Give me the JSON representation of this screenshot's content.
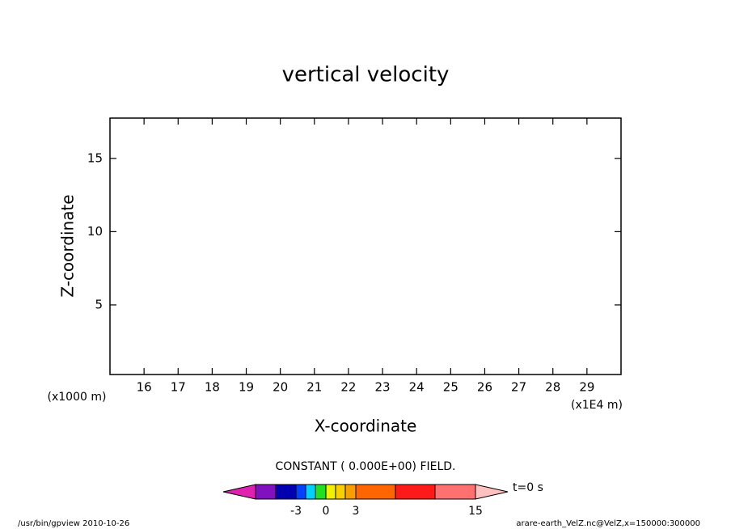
{
  "chart_data": {
    "type": "contour",
    "title": "vertical velocity",
    "xlabel": "X-coordinate",
    "ylabel": "Z-coordinate",
    "xunit": "(x1E4 m)",
    "yunit": "(x1000 m)",
    "xlim": [
      15,
      30
    ],
    "xticks": [
      16,
      17,
      18,
      19,
      20,
      21,
      22,
      23,
      24,
      25,
      26,
      27,
      28,
      29
    ],
    "ylim": [
      0.25,
      17.75
    ],
    "yticks": [
      5,
      10,
      15
    ],
    "message": "CONSTANT ( 0.000E+00) FIELD.",
    "time": "t=0 s",
    "colorbar_colors": [
      "#e020b0",
      "#8010c0",
      "#0000b0",
      "#0040ff",
      "#00d0ff",
      "#20e020",
      "#f0f000",
      "#f8d000",
      "#f8a000",
      "#ff6600",
      "#ff1a1a",
      "#ff7070",
      "#ffc0c0"
    ],
    "colorbar_ticks": [
      -3,
      0,
      3,
      15
    ],
    "footer_left": "/usr/bin/gpview  2010-10-26",
    "footer_right": "arare-earth_VelZ.nc@VelZ,x=150000:300000"
  }
}
